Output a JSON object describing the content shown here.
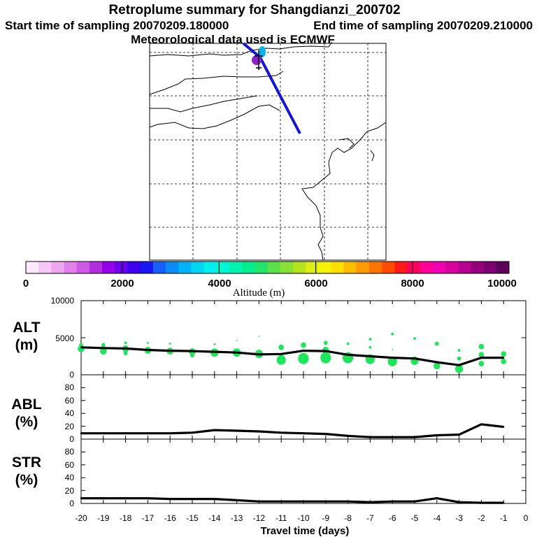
{
  "title": "Retroplume summary for Shangdianzi_200702",
  "start_label": "Start time of sampling 20070209.180000",
  "end_label": "End time of sampling 20070209.210000",
  "met_label": "Meteorological data used is ECMWF",
  "map": {
    "description_icon": "map-icon"
  },
  "colorbar": {
    "title": "Altitude (m)",
    "ticks": [
      "0",
      "2000",
      "4000",
      "6000",
      "8000",
      "10000"
    ],
    "colors": [
      "#ffe9ff",
      "#f7c8f7",
      "#eea6ee",
      "#e080e8",
      "#cf5ae6",
      "#b22de0",
      "#9400e8",
      "#6a00ee",
      "#3c00f0",
      "#1818f4",
      "#1460f8",
      "#0a8cf6",
      "#00b4f6",
      "#00d6f2",
      "#00f0ee",
      "#00f6d2",
      "#00f4b0",
      "#00ee8c",
      "#22e46a",
      "#5ae04a",
      "#8ae034",
      "#b4e41e",
      "#dcee12",
      "#f6f406",
      "#fee000",
      "#ffbc00",
      "#ff9a00",
      "#ff7400",
      "#ff4a00",
      "#ff1a1a",
      "#ff0060",
      "#ff0096",
      "#f000b0",
      "#d8009c",
      "#b80090",
      "#96007e",
      "#7a0070",
      "#5c005a"
    ]
  },
  "chart_data": [
    {
      "type": "line",
      "panel": "ALT",
      "ylabel_top": "ALT",
      "ylabel_bottom": "(m)",
      "ylim": [
        0,
        10000
      ],
      "yticks": [
        "10000",
        "5000",
        "0"
      ],
      "x": [
        -20,
        -19,
        -18,
        -17,
        -16,
        -15,
        -14,
        -13,
        -12,
        -11,
        -10,
        -9,
        -8,
        -7,
        -6,
        -5,
        -4,
        -3,
        -2,
        -1
      ],
      "values": [
        3700,
        3600,
        3550,
        3350,
        3250,
        3200,
        3100,
        3000,
        2750,
        2800,
        3250,
        3200,
        2700,
        2500,
        2300,
        2200,
        1700,
        1300,
        2300,
        2300
      ],
      "scatter": [
        {
          "x": -20,
          "y": 3500,
          "s": 5
        },
        {
          "x": -20,
          "y": 4000,
          "s": 3
        },
        {
          "x": -19,
          "y": 3200,
          "s": 5
        },
        {
          "x": -19,
          "y": 4000,
          "s": 3
        },
        {
          "x": -18,
          "y": 3500,
          "s": 5
        },
        {
          "x": -18,
          "y": 2900,
          "s": 3
        },
        {
          "x": -18,
          "y": 4300,
          "s": 2
        },
        {
          "x": -17,
          "y": 3300,
          "s": 5
        },
        {
          "x": -17,
          "y": 4300,
          "s": 1.5
        },
        {
          "x": -16,
          "y": 3200,
          "s": 5
        },
        {
          "x": -16,
          "y": 4200,
          "s": 1.5
        },
        {
          "x": -15,
          "y": 3100,
          "s": 5
        },
        {
          "x": -15,
          "y": 2600,
          "s": 3
        },
        {
          "x": -14,
          "y": 3000,
          "s": 6
        },
        {
          "x": -14,
          "y": 4100,
          "s": 1.5
        },
        {
          "x": -13,
          "y": 3000,
          "s": 6
        },
        {
          "x": -13,
          "y": 4600,
          "s": 1
        },
        {
          "x": -12,
          "y": 2800,
          "s": 6
        },
        {
          "x": -12,
          "y": 5200,
          "s": 1
        },
        {
          "x": -11,
          "y": 2000,
          "s": 7
        },
        {
          "x": -11,
          "y": 3700,
          "s": 4
        },
        {
          "x": -10,
          "y": 2200,
          "s": 8
        },
        {
          "x": -10,
          "y": 4000,
          "s": 4
        },
        {
          "x": -9,
          "y": 2300,
          "s": 8
        },
        {
          "x": -9,
          "y": 3300,
          "s": 5
        },
        {
          "x": -9,
          "y": 4300,
          "s": 3
        },
        {
          "x": -8,
          "y": 2300,
          "s": 8
        },
        {
          "x": -8,
          "y": 4200,
          "s": 2
        },
        {
          "x": -7,
          "y": 2100,
          "s": 7
        },
        {
          "x": -7,
          "y": 3700,
          "s": 2
        },
        {
          "x": -7,
          "y": 4800,
          "s": 2
        },
        {
          "x": -6,
          "y": 1800,
          "s": 7
        },
        {
          "x": -6,
          "y": 5500,
          "s": 2
        },
        {
          "x": -6,
          "y": 3400,
          "s": 1
        },
        {
          "x": -5,
          "y": 1900,
          "s": 6
        },
        {
          "x": -5,
          "y": 4900,
          "s": 2
        },
        {
          "x": -4,
          "y": 1200,
          "s": 5
        },
        {
          "x": -4,
          "y": 4200,
          "s": 3
        },
        {
          "x": -3,
          "y": 800,
          "s": 6
        },
        {
          "x": -3,
          "y": 2200,
          "s": 3
        },
        {
          "x": -3,
          "y": 3300,
          "s": 2
        },
        {
          "x": -2,
          "y": 2700,
          "s": 4
        },
        {
          "x": -2,
          "y": 1500,
          "s": 4
        },
        {
          "x": -2,
          "y": 3800,
          "s": 4
        },
        {
          "x": -1,
          "y": 2800,
          "s": 4
        },
        {
          "x": -1,
          "y": 1800,
          "s": 4
        }
      ]
    },
    {
      "type": "line",
      "panel": "ABL",
      "ylabel_top": "ABL",
      "ylabel_bottom": "(%)",
      "ylim": [
        0,
        100
      ],
      "yticks": [
        "80",
        "60",
        "40",
        "20",
        "0"
      ],
      "x": [
        -20,
        -19,
        -18,
        -17,
        -16,
        -15,
        -14,
        -13,
        -12,
        -11,
        -10,
        -9,
        -8,
        -7,
        -6,
        -5,
        -4,
        -3,
        -2,
        -1
      ],
      "values": [
        9,
        9,
        9,
        9,
        9,
        10,
        14,
        13,
        12,
        10,
        9,
        8,
        5,
        3,
        3,
        3,
        6,
        7,
        23,
        19
      ]
    },
    {
      "type": "line",
      "panel": "STR",
      "ylabel_top": "STR",
      "ylabel_bottom": "(%)",
      "ylim": [
        0,
        100
      ],
      "yticks": [
        "80",
        "60",
        "40",
        "20",
        "0"
      ],
      "x": [
        -20,
        -19,
        -18,
        -17,
        -16,
        -15,
        -14,
        -13,
        -12,
        -11,
        -10,
        -9,
        -8,
        -7,
        -6,
        -5,
        -4,
        -3,
        -2,
        -1
      ],
      "values": [
        8,
        8,
        8,
        8,
        7,
        7,
        7,
        5,
        3,
        3,
        3,
        3,
        3,
        2,
        3,
        3,
        8,
        2,
        1,
        1
      ],
      "xlabel": "Travel time (days)",
      "xticks": [
        "-20",
        "-19",
        "-18",
        "-17",
        "-16",
        "-15",
        "-14",
        "-13",
        "-12",
        "-11",
        "-10",
        "-9",
        "-8",
        "-7",
        "-6",
        "-5",
        "-4",
        "-3",
        "-2",
        "-1",
        "0"
      ]
    }
  ],
  "colors": {
    "trajectory": "#1414dc",
    "scatter": "#1ee65a",
    "line": "#000000",
    "receptor": "#8c22c8",
    "receptor_top": "#00b4f0"
  }
}
